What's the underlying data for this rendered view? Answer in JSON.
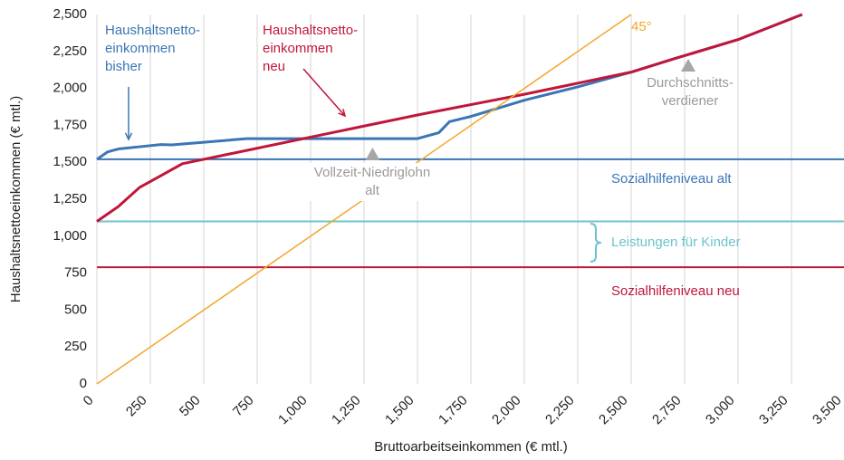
{
  "chart_data": {
    "type": "line",
    "xlabel": "Bruttoarbeitseinkommen (€  mtl.)",
    "ylabel": "Haushaltsnettoeinkommen (€  mtl.)",
    "xlim": [
      0,
      3500
    ],
    "ylim": [
      0,
      2500
    ],
    "xticks": [
      0,
      250,
      500,
      750,
      {
        "value": 1000,
        "label": "1,000"
      },
      {
        "value": 1250,
        "label": "1,250"
      },
      {
        "value": 1500,
        "label": "1,500"
      },
      {
        "value": 1750,
        "label": "1,750"
      },
      {
        "value": 2000,
        "label": "2,000"
      },
      {
        "value": 2250,
        "label": "2,250"
      },
      {
        "value": 2500,
        "label": "2,500"
      },
      {
        "value": 2750,
        "label": "2,750"
      },
      {
        "value": 3000,
        "label": "3,000"
      },
      {
        "value": 3250,
        "label": "3,250"
      },
      {
        "value": 3500,
        "label": "3,500"
      }
    ],
    "yticks": [
      0,
      250,
      500,
      750,
      {
        "value": 1000,
        "label": "1,000"
      },
      {
        "value": 1250,
        "label": "1,250"
      },
      {
        "value": 1500,
        "label": "1,500"
      },
      {
        "value": 1750,
        "label": "1,750"
      },
      {
        "value": 2000,
        "label": "2,000"
      },
      {
        "value": 2250,
        "label": "2,250"
      },
      {
        "value": 2500,
        "label": "2,500"
      }
    ],
    "grid": true,
    "series": [
      {
        "name": [
          "Haushaltsnetto-",
          "einkommen",
          "bisher"
        ],
        "color": "#3a75b5",
        "x": [
          0,
          50,
          100,
          200,
          300,
          350,
          500,
          700,
          1000,
          1500,
          1600,
          1650,
          1750,
          2000,
          2250,
          2500,
          2700,
          3000,
          3300
        ],
        "values": [
          1520,
          1570,
          1590,
          1605,
          1620,
          1618,
          1635,
          1660,
          1660,
          1660,
          1700,
          1775,
          1810,
          1920,
          2010,
          2110,
          2200,
          2330,
          2500
        ]
      },
      {
        "name": [
          "Haushaltsnetto-",
          "einkommen",
          "neu"
        ],
        "color": "#c0163a",
        "x": [
          0,
          100,
          200,
          300,
          400,
          500,
          1000,
          1500,
          2000,
          2500,
          2700,
          3000,
          3300
        ],
        "values": [
          1100,
          1200,
          1330,
          1410,
          1490,
          1520,
          1670,
          1820,
          1960,
          2110,
          2200,
          2330,
          2500
        ]
      },
      {
        "name": [
          "45°"
        ],
        "color": "#f4a62a",
        "x": [
          0,
          2500
        ],
        "values": [
          0,
          2500
        ]
      }
    ],
    "hlines": [
      {
        "label": "Sozialhilfeniveau alt",
        "value": 1520,
        "color": "#3a75b5"
      },
      {
        "label": "Leistungen für Kinder",
        "value": 1100,
        "color": "#6cc5cc"
      },
      {
        "label": "Sozialhilfeniveau neu",
        "value": 790,
        "color": "#c0163a"
      }
    ],
    "markers": [
      {
        "x": 1290,
        "y": 1556,
        "label": [
          "Vollzeit-Niedriglohn",
          "alt"
        ]
      },
      {
        "x": 2767,
        "y": 2157,
        "label": [
          "Durchschnitts-",
          "verdiener"
        ]
      }
    ]
  }
}
